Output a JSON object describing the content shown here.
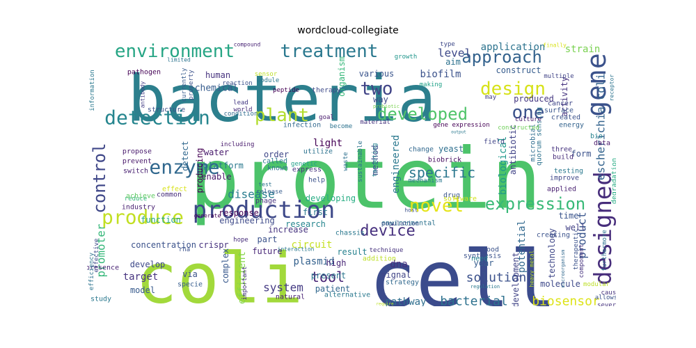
{
  "title": "wordcloud-collegiate",
  "words": [
    {
      "text": "protein",
      "color": "#4cc36a"
    },
    {
      "text": "bacteria",
      "color": "#2c7f8d"
    },
    {
      "text": "cell",
      "color": "#3b4b8c"
    },
    {
      "text": "coli",
      "color": "#a2d93b"
    },
    {
      "text": "production",
      "color": "#3e4989"
    },
    {
      "text": "detection",
      "color": "#25858e"
    },
    {
      "text": "enzyme",
      "color": "#31688e"
    },
    {
      "text": "expression",
      "color": "#38b977"
    },
    {
      "text": "design",
      "color": "#d7e219"
    },
    {
      "text": "gene",
      "color": "#3b528b"
    },
    {
      "text": "designed",
      "color": "#472d7b"
    },
    {
      "text": "environment",
      "color": "#26a584"
    },
    {
      "text": "treatment",
      "color": "#2a788e"
    },
    {
      "text": "approach",
      "color": "#33628d"
    },
    {
      "text": "produce",
      "color": "#c2df23"
    },
    {
      "text": "developed",
      "color": "#50c46a"
    },
    {
      "text": "plant",
      "color": "#b2dd2d"
    },
    {
      "text": "control",
      "color": "#3f4788"
    },
    {
      "text": "novel",
      "color": "#e5e419"
    },
    {
      "text": "device",
      "color": "#46307e"
    },
    {
      "text": "two",
      "color": "#414487"
    },
    {
      "text": "one",
      "color": "#3b528b"
    },
    {
      "text": "specific",
      "color": "#2a778e"
    },
    {
      "text": "bacterial",
      "color": "#2d718e"
    },
    {
      "text": "biosensor",
      "color": "#dde318"
    },
    {
      "text": "tool",
      "color": "#482475"
    },
    {
      "text": "solution",
      "color": "#3b518b"
    },
    {
      "text": "pathway",
      "color": "#2e6e8e"
    },
    {
      "text": "escherichia coli",
      "color": "#33638d"
    },
    {
      "text": "promoter",
      "color": "#35b779"
    },
    {
      "text": "product",
      "color": "#39558c"
    },
    {
      "text": "dna",
      "color": "#46307e"
    },
    {
      "text": "system",
      "color": "#443a83"
    },
    {
      "text": "level",
      "color": "#3e4989"
    },
    {
      "text": "application",
      "color": "#2c738e"
    },
    {
      "text": "strain",
      "color": "#7ad151"
    },
    {
      "text": "target",
      "color": "#46337f"
    },
    {
      "text": "disease",
      "color": "#287c8e"
    },
    {
      "text": "light",
      "color": "#440154"
    },
    {
      "text": "plasmid",
      "color": "#34618d"
    },
    {
      "text": "circuit",
      "color": "#c5e021"
    },
    {
      "text": "biofilm",
      "color": "#3b528b"
    },
    {
      "text": "potential",
      "color": "#31688e"
    },
    {
      "text": "biological",
      "color": "#1f988b"
    },
    {
      "text": "engineered",
      "color": "#2a788e"
    },
    {
      "text": "antibiotic",
      "color": "#414487"
    },
    {
      "text": "yeast",
      "color": "#2e6f8e"
    },
    {
      "text": "construct",
      "color": "#365c8d"
    },
    {
      "text": "activity",
      "color": "#46337f"
    },
    {
      "text": "concentration",
      "color": "#3b528b"
    },
    {
      "text": "method",
      "color": "#3e4989"
    },
    {
      "text": "efficient",
      "color": "#84d44b"
    },
    {
      "text": "produced",
      "color": "#453781"
    },
    {
      "text": "various",
      "color": "#3a548c"
    },
    {
      "text": "aim",
      "color": "#2c718e"
    },
    {
      "text": "chemical",
      "color": "#365c8d"
    },
    {
      "text": "human",
      "color": "#46327e"
    },
    {
      "text": "result",
      "color": "#26818e"
    },
    {
      "text": "future",
      "color": "#482677"
    },
    {
      "text": "part",
      "color": "#3b528b"
    },
    {
      "text": "platform",
      "color": "#2a788e"
    },
    {
      "text": "water",
      "color": "#481a6c"
    },
    {
      "text": "detect",
      "color": "#31688e"
    },
    {
      "text": "producing",
      "color": "#440154"
    },
    {
      "text": "order",
      "color": "#3f4788"
    },
    {
      "text": "first",
      "color": "#2a788e"
    },
    {
      "text": "response",
      "color": "#440154"
    },
    {
      "text": "function",
      "color": "#22a785"
    },
    {
      "text": "engineering",
      "color": "#3e4a89"
    },
    {
      "text": "complex",
      "color": "#38588c"
    },
    {
      "text": "model",
      "color": "#375a8c"
    },
    {
      "text": "crispr",
      "color": "#46327e"
    },
    {
      "text": "via",
      "color": "#3b528b"
    },
    {
      "text": "develop",
      "color": "#3e4989"
    },
    {
      "text": "signal",
      "color": "#414487"
    },
    {
      "text": "high",
      "color": "#482576"
    },
    {
      "text": "present",
      "color": "#2a768e"
    },
    {
      "text": "patient",
      "color": "#31688e"
    },
    {
      "text": "development",
      "color": "#414487"
    },
    {
      "text": "molecule",
      "color": "#3e4989"
    },
    {
      "text": "year",
      "color": "#365d8d"
    },
    {
      "text": "time",
      "color": "#3a548c"
    },
    {
      "text": "well",
      "color": "#424186"
    },
    {
      "text": "form",
      "color": "#3b528b"
    },
    {
      "text": "research",
      "color": "#25858e"
    },
    {
      "text": "increase",
      "color": "#46337f"
    },
    {
      "text": "way",
      "color": "#3e4989"
    },
    {
      "text": "enable",
      "color": "#481769"
    },
    {
      "text": "organism",
      "color": "#35b779"
    },
    {
      "text": "technology",
      "color": "#3f4788"
    },
    {
      "text": "field",
      "color": "#414487"
    },
    {
      "text": "microbial",
      "color": "#2f6c8e"
    },
    {
      "text": "quorum sensing",
      "color": "#2c728e"
    },
    {
      "text": "degradation",
      "color": "#25ab82"
    },
    {
      "text": "testing",
      "color": "#2a788e"
    },
    {
      "text": "improve",
      "color": "#3f4788"
    },
    {
      "text": "applied",
      "color": "#481f70"
    },
    {
      "text": "build",
      "color": "#472c7a"
    },
    {
      "text": "three",
      "color": "#46337f"
    },
    {
      "text": "data",
      "color": "#481769"
    },
    {
      "text": "bio",
      "color": "#26828e"
    },
    {
      "text": "created",
      "color": "#3b528b"
    },
    {
      "text": "energy",
      "color": "#33638d"
    },
    {
      "text": "surface",
      "color": "#39558c"
    },
    {
      "text": "cancer",
      "color": "#3f4788"
    },
    {
      "text": "culture",
      "color": "#48196b"
    },
    {
      "text": "multiple",
      "color": "#414487"
    },
    {
      "text": "receptor",
      "color": "#2c738e"
    },
    {
      "text": "finally",
      "color": "#d8e219"
    },
    {
      "text": "constructed",
      "color": "#6ece58"
    },
    {
      "text": "gene expression",
      "color": "#440154"
    },
    {
      "text": "therapy",
      "color": "#3e4a89"
    },
    {
      "text": "peptide",
      "color": "#440154"
    },
    {
      "text": "making",
      "color": "#1fa187"
    },
    {
      "text": "sensor",
      "color": "#bddf26"
    },
    {
      "text": "module",
      "color": "#2a788e"
    },
    {
      "text": "may",
      "color": "#433e85"
    },
    {
      "text": "probiotic",
      "color": "#7ad151"
    },
    {
      "text": "goal",
      "color": "#481a6c"
    },
    {
      "text": "infection",
      "color": "#31688e"
    },
    {
      "text": "become",
      "color": "#2c728e"
    },
    {
      "text": "material",
      "color": "#46327e"
    },
    {
      "text": "world",
      "color": "#472d7b"
    },
    {
      "text": "lead",
      "color": "#443983"
    },
    {
      "text": "condition",
      "color": "#2f6c8e"
    },
    {
      "text": "structure",
      "color": "#3b528b"
    },
    {
      "text": "reaction",
      "color": "#3b528b"
    },
    {
      "text": "currently",
      "color": "#365c8d"
    },
    {
      "text": "property",
      "color": "#3b528b"
    },
    {
      "text": "pathogen",
      "color": "#440154"
    },
    {
      "text": "limited",
      "color": "#2c738e"
    },
    {
      "text": "compound",
      "color": "#482374"
    },
    {
      "text": "growth",
      "color": "#1f958b"
    },
    {
      "text": "type",
      "color": "#3e4989"
    },
    {
      "text": "information",
      "color": "#2a788e"
    },
    {
      "text": "antibody",
      "color": "#433e85"
    },
    {
      "text": "propose",
      "color": "#481a6c"
    },
    {
      "text": "prevent",
      "color": "#481769"
    },
    {
      "text": "switch",
      "color": "#482071"
    },
    {
      "text": "including",
      "color": "#481b6d"
    },
    {
      "text": "called",
      "color": "#2a788e"
    },
    {
      "text": "known",
      "color": "#2c728e"
    },
    {
      "text": "genetic",
      "color": "#1fa088"
    },
    {
      "text": "express",
      "color": "#46327e"
    },
    {
      "text": "help",
      "color": "#3b528b"
    },
    {
      "text": "utilize",
      "color": "#2c728e"
    },
    {
      "text": "sustainable",
      "color": "#2c728e"
    },
    {
      "text": "waste",
      "color": "#2d708e"
    },
    {
      "text": "targeting",
      "color": "#26828e"
    },
    {
      "text": "biobrick",
      "color": "#470d60"
    },
    {
      "text": "change",
      "color": "#31688e"
    },
    {
      "text": "mechanism",
      "color": "#2a788e"
    },
    {
      "text": "developing",
      "color": "#25ac82"
    },
    {
      "text": "drug",
      "color": "#3a548c"
    },
    {
      "text": "software",
      "color": "#d2e21b"
    },
    {
      "text": "host",
      "color": "#3b528b"
    },
    {
      "text": "environmental",
      "color": "#2c728e"
    },
    {
      "text": "population",
      "color": "#3b528b"
    },
    {
      "text": "chassis",
      "color": "#2a788e"
    },
    {
      "text": "technique",
      "color": "#46327e"
    },
    {
      "text": "addition",
      "color": "#bddf26"
    },
    {
      "text": "strategy",
      "color": "#31688e"
    },
    {
      "text": "alternative",
      "color": "#2a788e"
    },
    {
      "text": "natural",
      "color": "#482173"
    },
    {
      "text": "study",
      "color": "#2a788e"
    },
    {
      "text": "specie",
      "color": "#365c8d"
    },
    {
      "text": "important",
      "color": "#46327e"
    },
    {
      "text": "rna",
      "color": "#3b528b"
    },
    {
      "text": "presence",
      "color": "#482374"
    },
    {
      "text": "hope",
      "color": "#472d7b"
    },
    {
      "text": "effective",
      "color": "#3e4989"
    },
    {
      "text": "efficiency",
      "color": "#2c738e"
    },
    {
      "text": "reduce",
      "color": "#35b779"
    },
    {
      "text": "generate",
      "color": "#440154"
    },
    {
      "text": "industry",
      "color": "#482071"
    },
    {
      "text": "achieve",
      "color": "#5ec962"
    },
    {
      "text": "effect",
      "color": "#d8e219"
    },
    {
      "text": "common",
      "color": "#472d7b"
    },
    {
      "text": "test",
      "color": "#2c728e"
    },
    {
      "text": "release",
      "color": "#365c8d"
    },
    {
      "text": "phage",
      "color": "#46327e"
    },
    {
      "text": "interaction",
      "color": "#2a788e"
    },
    {
      "text": "synthesis",
      "color": "#3b528b"
    },
    {
      "text": "need",
      "color": "#26828e"
    },
    {
      "text": "food",
      "color": "#3b528b"
    },
    {
      "text": "heavy metal",
      "color": "#bddf26"
    },
    {
      "text": "regulation",
      "color": "#2a788e"
    },
    {
      "text": "therapeutic",
      "color": "#3b528b"
    },
    {
      "text": "component",
      "color": "#46327e"
    },
    {
      "text": "microorganism",
      "color": "#31688e"
    },
    {
      "text": "modular",
      "color": "#bddf26"
    },
    {
      "text": "furthermore",
      "color": "#2c728e"
    },
    {
      "text": "creating",
      "color": "#3b528b"
    },
    {
      "text": "cause",
      "color": "#46327e"
    },
    {
      "text": "allows",
      "color": "#3b528b"
    },
    {
      "text": "several",
      "color": "#46327e"
    },
    {
      "text": "require",
      "color": "#bddf26"
    },
    {
      "text": "output",
      "color": "#2a788e"
    }
  ]
}
